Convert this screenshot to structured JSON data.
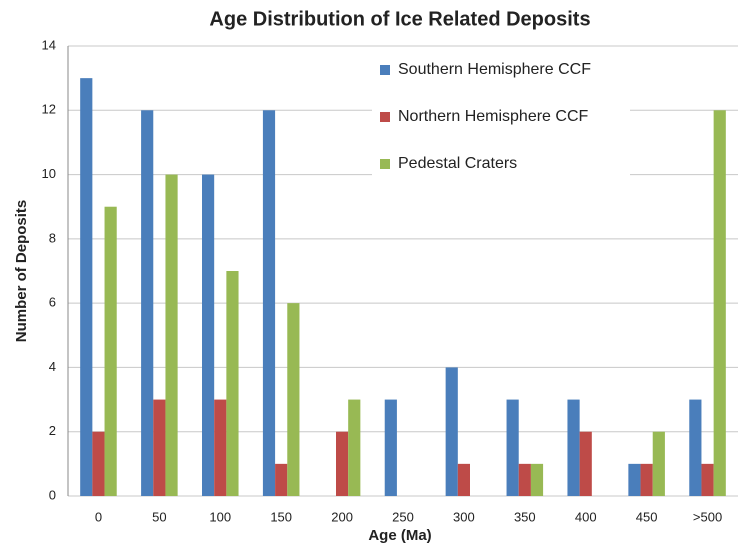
{
  "chart_data": {
    "type": "bar",
    "title": "Age Distribution of Ice Related Deposits",
    "x_label": "Age (Ma)",
    "y_label": "Number of Deposits",
    "categories": [
      "0",
      "50",
      "100",
      "150",
      "200",
      "250",
      "300",
      "350",
      "400",
      "450",
      ">500"
    ],
    "series": [
      {
        "name": "Southern Hemisphere CCF",
        "color": "#4a7ebb",
        "values": [
          13,
          12,
          10,
          12,
          0,
          3,
          4,
          3,
          3,
          1,
          3
        ]
      },
      {
        "name": "Northern Hemisphere CCF",
        "color": "#be4b48",
        "values": [
          2,
          3,
          3,
          1,
          2,
          0,
          1,
          1,
          2,
          1,
          1
        ]
      },
      {
        "name": "Pedestal Craters",
        "color": "#98b954",
        "values": [
          9,
          10,
          7,
          6,
          3,
          0,
          0,
          1,
          0,
          2,
          12
        ]
      }
    ],
    "ylim": [
      0,
      14
    ],
    "yticks": [
      0,
      2,
      4,
      6,
      8,
      10,
      12,
      14
    ],
    "grid": true,
    "legend": "upper-right"
  }
}
